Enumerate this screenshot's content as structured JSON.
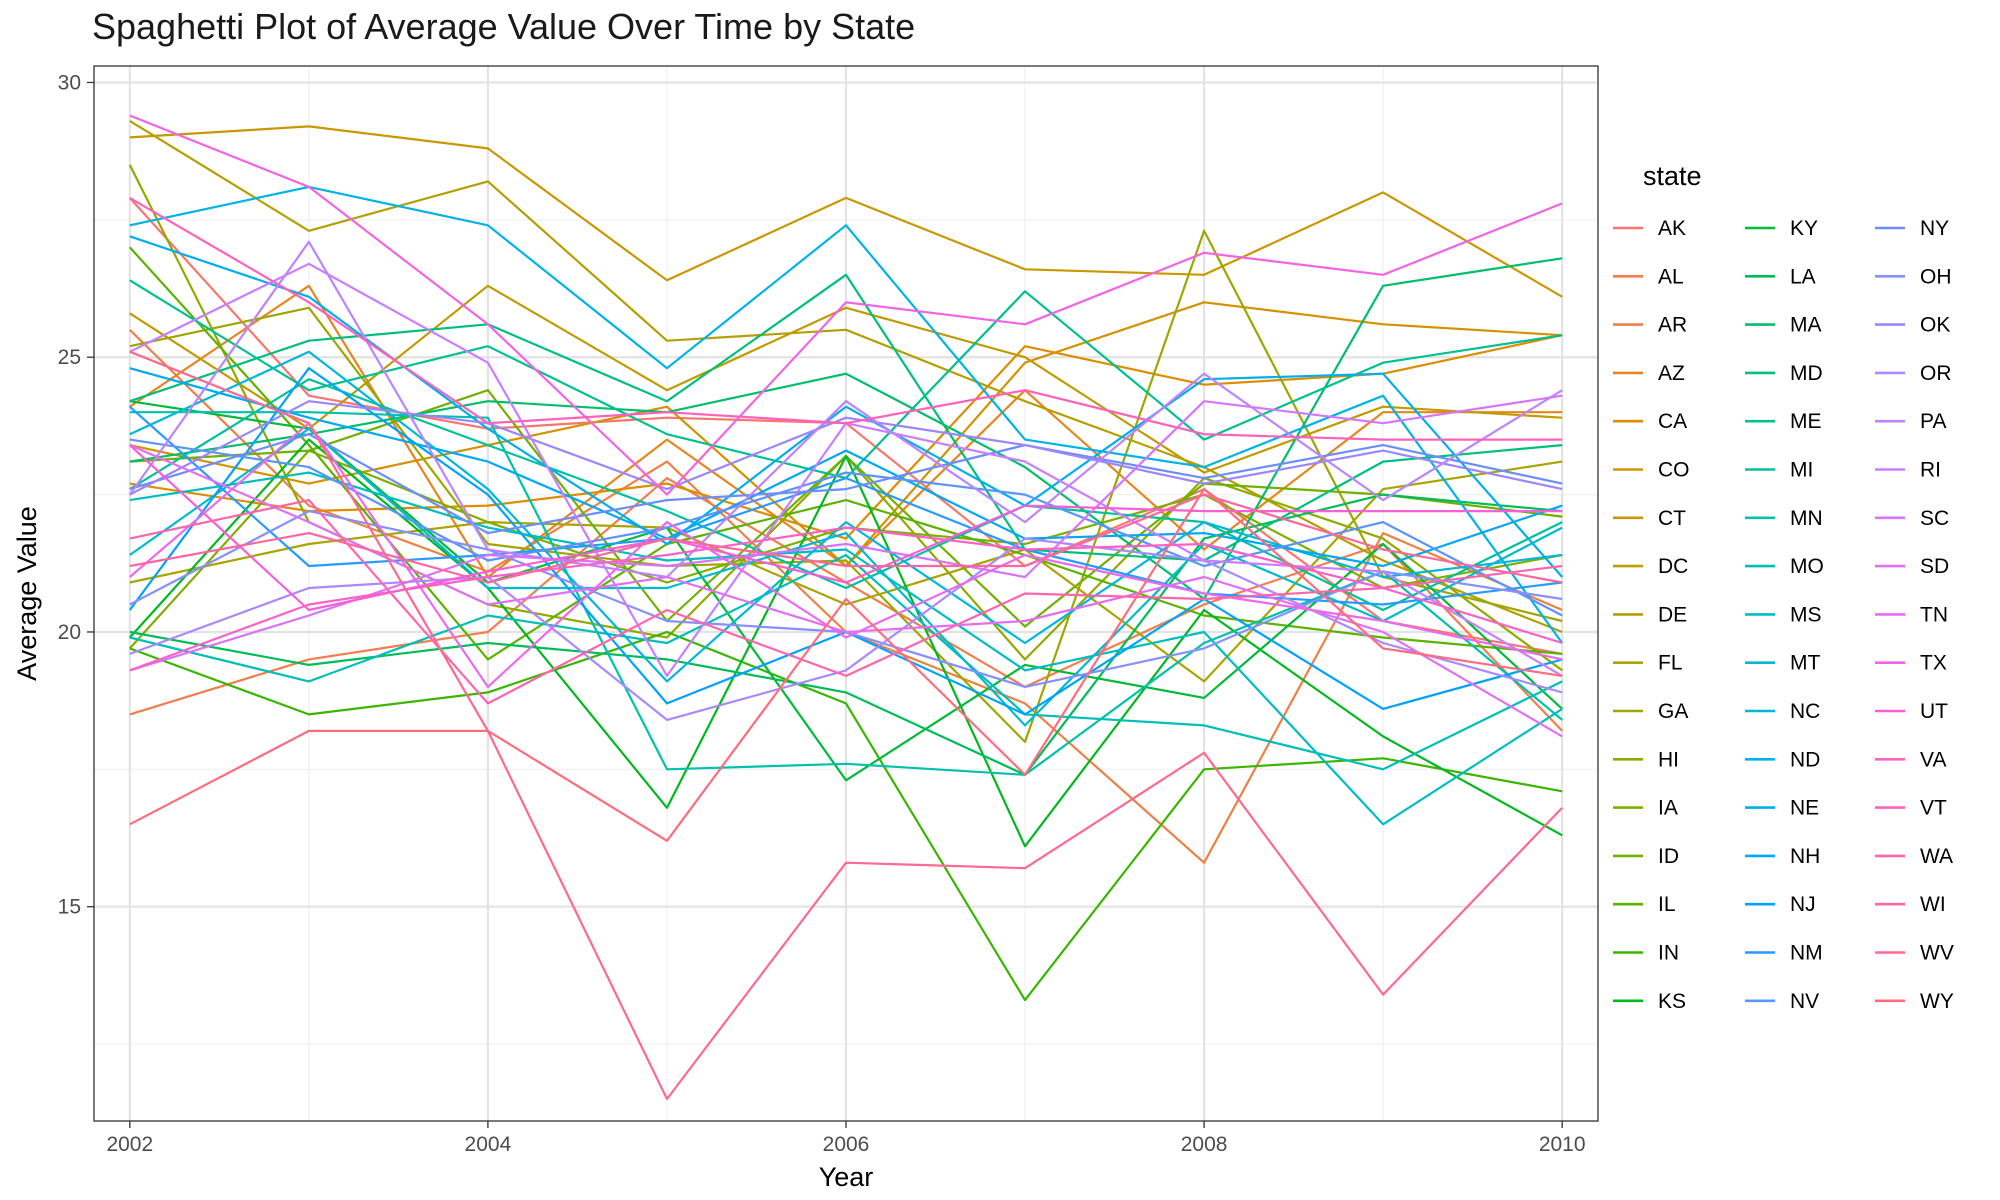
{
  "chart_data": {
    "type": "line",
    "title": "Spaghetti Plot of Average Value Over Time by State",
    "xlabel": "Year",
    "ylabel": "Average Value",
    "x": [
      2002,
      2003,
      2004,
      2005,
      2006,
      2007,
      2008,
      2009,
      2010
    ],
    "x_ticks": [
      "2002",
      "2004",
      "2006",
      "2008",
      "2010"
    ],
    "y_ticks": [
      "15",
      "20",
      "25",
      "30"
    ],
    "xlim": [
      2001.8,
      2010.2
    ],
    "ylim": [
      11.1,
      30.3
    ],
    "grid": true,
    "legend_title": "state",
    "legend_position": "right",
    "series": [
      {
        "name": "AK",
        "color": "#F8766D",
        "values": [
          27.9,
          24.3,
          23.7,
          23.9,
          23.8,
          21.2,
          22.6,
          20.2,
          19.6
        ]
      },
      {
        "name": "AL",
        "color": "#F47D4E",
        "values": [
          18.5,
          19.5,
          20.0,
          22.8,
          20.9,
          19.0,
          20.5,
          21.6,
          18.2
        ]
      },
      {
        "name": "AR",
        "color": "#EE8043",
        "values": [
          25.5,
          22.3,
          21.1,
          23.1,
          20.0,
          18.7,
          15.8,
          21.8,
          20.4
        ]
      },
      {
        "name": "AZ",
        "color": "#E7851E",
        "values": [
          24.1,
          26.3,
          21.0,
          23.5,
          21.2,
          24.4,
          21.5,
          24.0,
          24.0
        ]
      },
      {
        "name": "CA",
        "color": "#DE8C00",
        "values": [
          22.7,
          22.2,
          22.3,
          22.7,
          21.7,
          25.2,
          24.5,
          24.7,
          25.4
        ]
      },
      {
        "name": "CO",
        "color": "#D49200",
        "values": [
          23.4,
          22.7,
          23.4,
          24.1,
          21.2,
          24.9,
          26.0,
          25.6,
          25.4
        ]
      },
      {
        "name": "CT",
        "color": "#CA9700",
        "values": [
          29.0,
          29.2,
          28.8,
          26.4,
          27.9,
          26.6,
          26.5,
          28.0,
          26.1
        ]
      },
      {
        "name": "DC",
        "color": "#C09B00",
        "values": [
          25.8,
          23.7,
          26.3,
          24.4,
          25.9,
          25.0,
          22.9,
          24.1,
          23.9
        ]
      },
      {
        "name": "DE",
        "color": "#B59F00",
        "values": [
          29.3,
          27.3,
          28.2,
          25.3,
          25.5,
          24.2,
          23.0,
          21.3,
          20.0
        ]
      },
      {
        "name": "FL",
        "color": "#A9A400",
        "values": [
          20.9,
          21.6,
          22.0,
          21.9,
          20.5,
          21.5,
          19.1,
          22.6,
          23.1
        ]
      },
      {
        "name": "GA",
        "color": "#9DA700",
        "values": [
          25.2,
          25.9,
          21.6,
          21.2,
          21.3,
          18.0,
          27.3,
          21.0,
          20.2
        ]
      },
      {
        "name": "HI",
        "color": "#90AA00",
        "values": [
          28.5,
          22.0,
          20.5,
          19.9,
          23.2,
          19.5,
          22.8,
          21.7,
          19.3
        ]
      },
      {
        "name": "IA",
        "color": "#80AE00",
        "values": [
          19.7,
          23.3,
          22.0,
          20.9,
          21.9,
          21.6,
          22.5,
          20.8,
          21.4
        ]
      },
      {
        "name": "ID",
        "color": "#70B000",
        "values": [
          23.1,
          23.3,
          24.4,
          20.2,
          23.2,
          20.1,
          22.7,
          22.5,
          22.1
        ]
      },
      {
        "name": "IL",
        "color": "#5BB300",
        "values": [
          27.0,
          23.4,
          19.5,
          21.6,
          22.4,
          21.4,
          20.3,
          19.9,
          19.6
        ]
      },
      {
        "name": "IN",
        "color": "#3AB600",
        "values": [
          19.7,
          18.5,
          18.9,
          20.0,
          18.7,
          13.3,
          17.5,
          17.7,
          17.1
        ]
      },
      {
        "name": "KS",
        "color": "#00B81F",
        "values": [
          19.9,
          23.5,
          20.8,
          16.8,
          23.2,
          16.1,
          20.4,
          18.1,
          16.3
        ]
      },
      {
        "name": "KY",
        "color": "#00BA38",
        "values": [
          24.2,
          23.7,
          20.9,
          21.9,
          17.3,
          19.4,
          18.8,
          21.6,
          18.6
        ]
      },
      {
        "name": "LA",
        "color": "#00BC58",
        "values": [
          20.0,
          19.4,
          19.8,
          19.5,
          18.9,
          17.4,
          21.7,
          22.5,
          22.2
        ]
      },
      {
        "name": "MA",
        "color": "#00BE6C",
        "values": [
          23.1,
          23.6,
          24.2,
          24.0,
          24.7,
          23.0,
          20.6,
          26.3,
          26.8
        ]
      },
      {
        "name": "MD",
        "color": "#00BF7D",
        "values": [
          24.2,
          25.3,
          25.6,
          24.2,
          26.5,
          21.5,
          21.3,
          23.1,
          23.4
        ]
      },
      {
        "name": "ME",
        "color": "#00C08E",
        "values": [
          26.4,
          24.4,
          25.2,
          23.6,
          22.8,
          26.2,
          23.5,
          24.9,
          25.4
        ]
      },
      {
        "name": "MI",
        "color": "#00C19C",
        "values": [
          22.6,
          24.6,
          23.4,
          22.2,
          20.8,
          22.3,
          22.0,
          20.4,
          22.0
        ]
      },
      {
        "name": "MN",
        "color": "#00C1AA",
        "values": [
          24.0,
          24.0,
          23.9,
          17.5,
          17.6,
          17.4,
          19.8,
          21.1,
          18.4
        ]
      },
      {
        "name": "MO",
        "color": "#00BFB8",
        "values": [
          19.9,
          19.1,
          20.3,
          19.8,
          21.4,
          18.5,
          18.3,
          17.5,
          19.1
        ]
      },
      {
        "name": "MS",
        "color": "#00BDC4",
        "values": [
          22.4,
          22.9,
          21.9,
          21.3,
          21.5,
          19.3,
          20.0,
          16.5,
          18.6
        ]
      },
      {
        "name": "MT",
        "color": "#00BAD0",
        "values": [
          21.4,
          23.7,
          20.8,
          20.8,
          21.8,
          18.3,
          21.6,
          20.2,
          21.9
        ]
      },
      {
        "name": "NC",
        "color": "#00B7DB",
        "values": [
          23.6,
          25.1,
          22.6,
          19.1,
          22.0,
          19.8,
          22.0,
          21.0,
          21.4
        ]
      },
      {
        "name": "ND",
        "color": "#00B3E5",
        "values": [
          27.4,
          28.1,
          27.4,
          24.8,
          27.4,
          23.5,
          23.0,
          24.3,
          19.8
        ]
      },
      {
        "name": "NE",
        "color": "#00AEEE",
        "values": [
          27.2,
          26.1,
          23.7,
          21.6,
          24.1,
          22.3,
          24.6,
          24.7,
          21.0
        ]
      },
      {
        "name": "NH",
        "color": "#00A8F6",
        "values": [
          24.8,
          23.9,
          23.1,
          21.7,
          23.3,
          21.7,
          21.8,
          21.2,
          22.3
        ]
      },
      {
        "name": "NJ",
        "color": "#00A2FC",
        "values": [
          20.4,
          24.8,
          22.5,
          18.7,
          20.0,
          18.5,
          20.6,
          18.6,
          19.5
        ]
      },
      {
        "name": "NM",
        "color": "#279AFF",
        "values": [
          24.1,
          21.2,
          21.4,
          21.7,
          22.8,
          21.5,
          20.7,
          20.5,
          20.9
        ]
      },
      {
        "name": "NV",
        "color": "#5B94FF",
        "values": [
          23.5,
          23.0,
          21.3,
          21.9,
          22.9,
          22.5,
          21.2,
          22.0,
          20.3
        ]
      },
      {
        "name": "NY",
        "color": "#6C8DFF",
        "values": [
          22.6,
          23.6,
          21.8,
          22.4,
          22.6,
          23.4,
          22.8,
          23.4,
          22.7
        ]
      },
      {
        "name": "OH",
        "color": "#8690FF",
        "values": [
          20.5,
          22.2,
          21.5,
          20.2,
          20.0,
          19.0,
          19.7,
          21.1,
          20.6
        ]
      },
      {
        "name": "OK",
        "color": "#9B86FF",
        "values": [
          22.5,
          24.2,
          23.8,
          22.6,
          23.9,
          23.4,
          22.7,
          23.3,
          22.6
        ]
      },
      {
        "name": "OR",
        "color": "#AC88FF",
        "values": [
          19.6,
          20.8,
          21.0,
          18.4,
          19.3,
          21.7,
          21.3,
          19.8,
          18.9
        ]
      },
      {
        "name": "PA",
        "color": "#BC84FF",
        "values": [
          22.5,
          27.1,
          21.5,
          21.0,
          24.2,
          22.0,
          24.7,
          22.4,
          24.4
        ]
      },
      {
        "name": "RI",
        "color": "#CB7DFF",
        "values": [
          25.1,
          26.7,
          24.9,
          19.2,
          23.8,
          23.1,
          21.3,
          21.1,
          19.2
        ]
      },
      {
        "name": "SC",
        "color": "#D774FD",
        "values": [
          19.3,
          20.3,
          21.4,
          21.2,
          21.6,
          21.0,
          24.2,
          23.8,
          24.3
        ]
      },
      {
        "name": "SD",
        "color": "#E36EF6",
        "values": [
          23.4,
          22.0,
          20.5,
          21.0,
          20.0,
          20.2,
          21.0,
          20.0,
          18.1
        ]
      },
      {
        "name": "TN",
        "color": "#EB69EE",
        "values": [
          21.0,
          23.8,
          19.0,
          22.0,
          19.9,
          21.4,
          20.7,
          20.2,
          19.5
        ]
      },
      {
        "name": "TX",
        "color": "#F264E4",
        "values": [
          29.4,
          28.1,
          25.6,
          22.5,
          26.0,
          25.6,
          26.9,
          26.5,
          27.8
        ]
      },
      {
        "name": "UT",
        "color": "#F85ED8",
        "values": [
          23.4,
          20.4,
          21.1,
          21.7,
          20.9,
          22.3,
          22.2,
          22.2,
          22.2
        ]
      },
      {
        "name": "VA",
        "color": "#FC61C9",
        "values": [
          19.3,
          20.5,
          21.0,
          21.4,
          21.9,
          21.5,
          21.6,
          20.8,
          19.8
        ]
      },
      {
        "name": "VT",
        "color": "#FF62BC",
        "values": [
          27.9,
          26.0,
          23.8,
          24.0,
          23.8,
          24.4,
          23.6,
          23.5,
          23.5
        ]
      },
      {
        "name": "WA",
        "color": "#FF64AF",
        "values": [
          21.7,
          22.4,
          18.7,
          20.4,
          19.2,
          20.7,
          20.6,
          20.8,
          21.2
        ]
      },
      {
        "name": "WI",
        "color": "#FF66A0",
        "values": [
          21.2,
          21.8,
          20.9,
          21.7,
          21.2,
          21.2,
          22.5,
          21.5,
          20.9
        ]
      },
      {
        "name": "WV",
        "color": "#FF6890",
        "values": [
          25.1,
          23.8,
          18.2,
          11.5,
          15.8,
          15.7,
          17.8,
          13.4,
          16.8
        ]
      },
      {
        "name": "WY",
        "color": "#FF6C7E",
        "values": [
          16.5,
          18.2,
          18.2,
          16.2,
          20.6,
          17.4,
          22.6,
          19.7,
          19.2
        ]
      }
    ]
  }
}
